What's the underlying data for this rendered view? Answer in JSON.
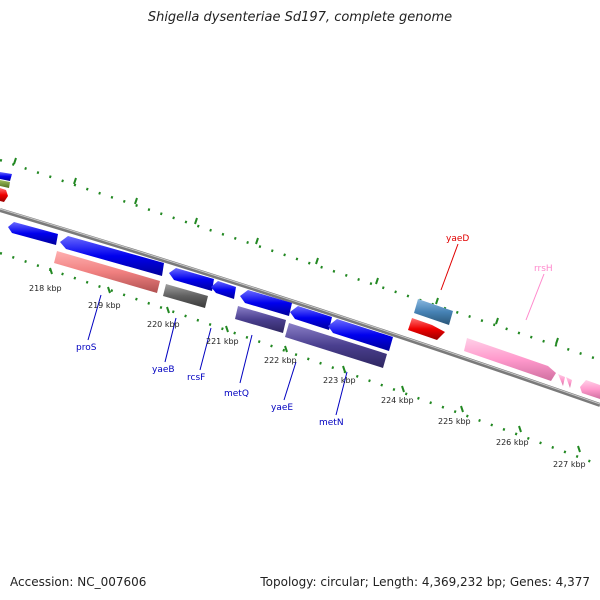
{
  "title": "Shigella dysenteriae Sd197, complete genome",
  "footer": {
    "accession": "Accession: NC_007606",
    "summary": "Topology: circular; Length: 4,369,232 bp; Genes: 4,377"
  },
  "ticks": [
    "218 kbp",
    "219 kbp",
    "220 kbp",
    "221 kbp",
    "222 kbp",
    "223 kbp",
    "224 kbp",
    "225 kbp",
    "226 kbp",
    "227 kbp"
  ],
  "gene_labels": [
    {
      "name": "proS",
      "color": "#0000c0"
    },
    {
      "name": "yaeB",
      "color": "#0000c0"
    },
    {
      "name": "rcsF",
      "color": "#0000c0"
    },
    {
      "name": "metQ",
      "color": "#0000c0"
    },
    {
      "name": "yaeE",
      "color": "#0000c0"
    },
    {
      "name": "metN",
      "color": "#0000c0"
    },
    {
      "name": "yaeD",
      "color": "#e00000"
    },
    {
      "name": "rrsH",
      "color": "#ff88cc"
    }
  ],
  "colors": {
    "backbone": "#808080",
    "dots": "#228822",
    "cds_blue": "#0000ee",
    "salmon": "#f08080",
    "gray": "#606060",
    "slate": "#4a3f8f",
    "steel": "#4682b4",
    "red": "#ee0000",
    "pink": "#ff99cc"
  }
}
